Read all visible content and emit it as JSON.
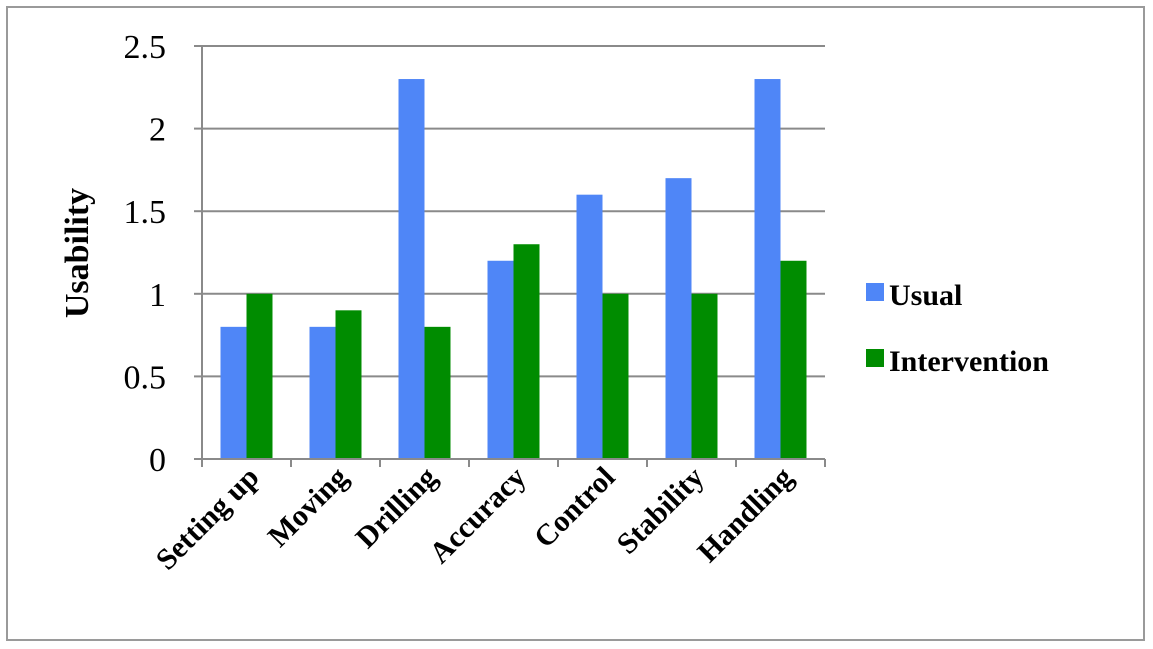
{
  "chart_data": {
    "type": "bar",
    "categories": [
      "Setting up",
      "Moving",
      "Drilling",
      "Accuracy",
      "Control",
      "Stability",
      "Handling"
    ],
    "series": [
      {
        "name": "Usual",
        "color": "#4f86f7",
        "values": [
          0.8,
          0.8,
          2.3,
          1.2,
          1.6,
          1.7,
          2.3
        ]
      },
      {
        "name": "Intervention",
        "color": "#008c00",
        "values": [
          1.0,
          0.9,
          0.8,
          1.3,
          1.0,
          1.0,
          1.2
        ]
      }
    ],
    "ylabel": "Usability",
    "ylim": [
      0,
      2.5
    ],
    "yticks": [
      "0",
      "0.5",
      "1",
      "1.5",
      "2",
      "2.5"
    ],
    "grid": true,
    "legend_position": "right"
  }
}
